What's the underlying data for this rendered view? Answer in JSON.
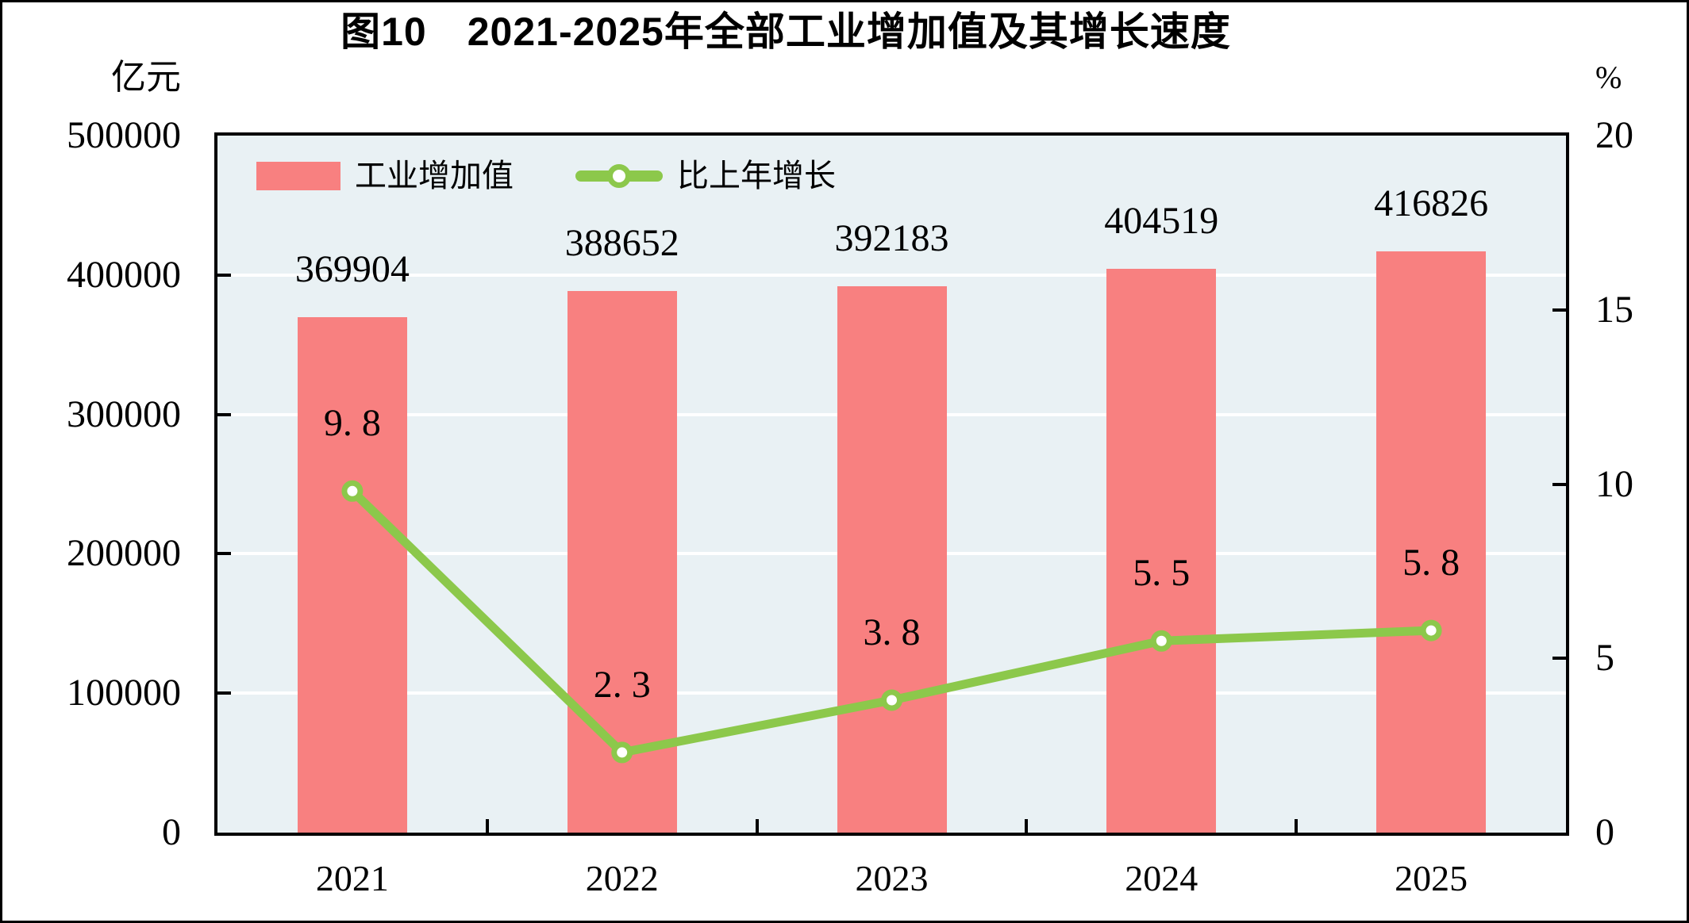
{
  "title": "图10　2021-2025年全部工业增加值及其增长速度",
  "legend": [
    {
      "label": "工业增加值",
      "type": "bar"
    },
    {
      "label": "比上年增长",
      "type": "line"
    }
  ],
  "colors": {
    "bar": "#F88080",
    "line": "#8CC84B",
    "plot_background": "#E9F1F4",
    "gridline": "#FFFFFF",
    "axis": "#000000",
    "text": "#000000"
  },
  "chart_data": {
    "type": "bar",
    "subtype": "bar+line combo, dual axis",
    "title": "图10　2021-2025年全部工业增加值及其增长速度",
    "categories": [
      "2021",
      "2022",
      "2023",
      "2024",
      "2025"
    ],
    "left_axis": {
      "unit": "亿元",
      "ticks": [
        "500000",
        "400000",
        "300000",
        "200000",
        "100000",
        "0"
      ],
      "ylim": [
        0,
        500000
      ]
    },
    "right_axis": {
      "unit": "%",
      "ticks": [
        "20",
        "15",
        "10",
        "5",
        "0"
      ],
      "ylim": [
        0,
        20
      ]
    },
    "grid": "horizontal white gridlines at left-axis 100000 steps",
    "legend_position": "top-left inside plot",
    "series": [
      {
        "name": "工业增加值",
        "type": "bar",
        "axis": "left",
        "values": [
          369904,
          388652,
          392183,
          404519,
          416826
        ],
        "labels": [
          "369904",
          "388652",
          "392183",
          "404519",
          "416826"
        ],
        "color": "#F88080"
      },
      {
        "name": "比上年增长",
        "type": "line",
        "axis": "right",
        "values": [
          9.8,
          2.3,
          3.8,
          5.5,
          5.8
        ],
        "labels": [
          "9. 8",
          "2. 3",
          "3. 8",
          "5. 5",
          "5. 8"
        ],
        "color": "#8CC84B"
      }
    ]
  }
}
